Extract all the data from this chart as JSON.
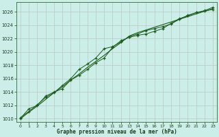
{
  "xlabel": "Graphe pression niveau de la mer (hPa)",
  "background_color": "#cceee8",
  "grid_color": "#b8c8c0",
  "line_color": "#1a5a1a",
  "xmin": -0.5,
  "xmax": 23.5,
  "ymin": 1009.5,
  "ymax": 1027.5,
  "yticks": [
    1010,
    1012,
    1014,
    1016,
    1018,
    1020,
    1022,
    1024,
    1026
  ],
  "xticks": [
    0,
    1,
    2,
    3,
    4,
    5,
    6,
    7,
    8,
    9,
    10,
    11,
    12,
    13,
    14,
    15,
    16,
    17,
    18,
    19,
    20,
    21,
    22,
    23
  ],
  "line1_x": [
    0,
    1,
    2,
    3,
    4,
    5,
    6,
    7,
    8,
    9,
    10,
    11,
    12,
    13,
    14,
    15,
    16,
    17,
    18,
    19,
    20,
    21,
    22,
    23
  ],
  "line1_y": [
    1010.2,
    1011.1,
    1012.1,
    1013.2,
    1013.9,
    1015.0,
    1016.0,
    1017.4,
    1018.2,
    1019.1,
    1020.5,
    1020.8,
    1021.5,
    1022.3,
    1022.7,
    1023.2,
    1023.5,
    1023.8,
    1024.2,
    1024.9,
    1025.5,
    1025.9,
    1026.1,
    1026.4
  ],
  "line2_x": [
    0,
    1,
    2,
    3,
    4,
    5,
    6,
    7,
    8,
    9,
    10,
    11,
    12,
    13,
    14,
    15,
    16,
    17,
    18,
    19,
    20,
    21,
    22,
    23
  ],
  "line2_y": [
    1010.1,
    1011.5,
    1012.0,
    1013.4,
    1014.0,
    1014.5,
    1015.8,
    1016.5,
    1017.4,
    1018.4,
    1019.1,
    1020.7,
    1021.7,
    1022.2,
    1022.5,
    1022.7,
    1023.1,
    1023.5,
    1024.3,
    1025.0,
    1025.4,
    1025.9,
    1026.2,
    1026.7
  ],
  "line3_x": [
    0,
    1,
    2,
    3,
    4,
    5,
    6,
    7,
    8,
    9,
    10,
    11,
    12,
    13,
    14,
    15,
    16,
    17,
    18,
    19,
    20,
    21,
    22,
    23
  ],
  "line3_y": [
    1010.0,
    1011.0,
    1011.9,
    1012.9,
    1013.9,
    1014.8,
    1015.8,
    1016.7,
    1017.7,
    1018.6,
    1019.5,
    1020.5,
    1021.4,
    1022.4,
    1022.9,
    1023.3,
    1023.7,
    1024.1,
    1024.5,
    1024.9,
    1025.3,
    1025.7,
    1026.1,
    1026.5
  ]
}
